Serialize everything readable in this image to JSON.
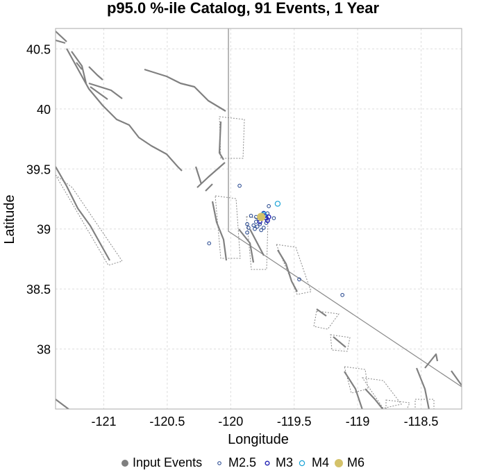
{
  "chart_data": {
    "type": "scatter",
    "title": "p95.0 %-ile Catalog, 91 Events, 1 Year",
    "xlabel": "Longitude",
    "ylabel": "Latitude",
    "xlim": [
      -121.38,
      -118.18
    ],
    "ylim": [
      37.5,
      40.67
    ],
    "x_ticks": [
      -121,
      -120.5,
      -120,
      -119.5,
      -119,
      -118.5
    ],
    "x_tick_labels": [
      "-121",
      "-120.5",
      "-120",
      "-119.5",
      "-119",
      "-118.5"
    ],
    "y_ticks": [
      38,
      38.5,
      39,
      39.5,
      40,
      40.5
    ],
    "y_tick_labels": [
      "38",
      "38.5",
      "39",
      "39.5",
      "40",
      "40.5"
    ],
    "grid": true,
    "legend": {
      "placement": "bottom",
      "entries": [
        {
          "name": "Input Events",
          "color": "#7f7f7f"
        },
        {
          "name": "M2.5",
          "color": "#1c3f8a"
        },
        {
          "name": "M3",
          "color": "#2a2ab5"
        },
        {
          "name": "M4",
          "color": "#1aa3d6"
        },
        {
          "name": "M6",
          "color": "#d4c26a"
        }
      ]
    },
    "series": [
      {
        "name": "M2.5",
        "points": [
          [
            -119.93,
            39.36
          ],
          [
            -119.87,
            38.97
          ],
          [
            -119.87,
            39.04
          ],
          [
            -119.86,
            39.01
          ],
          [
            -119.82,
            39.03
          ],
          [
            -119.81,
            39.0
          ],
          [
            -119.8,
            39.06
          ],
          [
            -119.79,
            39.02
          ],
          [
            -119.77,
            39.04
          ],
          [
            -119.76,
            38.99
          ],
          [
            -119.74,
            39.01
          ],
          [
            -119.72,
            39.05
          ],
          [
            -119.71,
            39.13
          ],
          [
            -119.7,
            39.19
          ],
          [
            -119.84,
            39.11
          ],
          [
            -119.66,
            39.09
          ],
          [
            -120.17,
            38.88
          ],
          [
            -119.46,
            38.58
          ],
          [
            -119.12,
            38.45
          ],
          [
            -119.78,
            39.08
          ],
          [
            -119.75,
            39.12
          ],
          [
            -119.8,
            39.1
          ]
        ]
      },
      {
        "name": "M3",
        "points": [
          [
            -119.76,
            39.1
          ],
          [
            -119.73,
            39.11
          ],
          [
            -119.72,
            39.09
          ],
          [
            -119.74,
            39.13
          ],
          [
            -119.7,
            39.1
          ],
          [
            -119.77,
            39.06
          ],
          [
            -119.71,
            39.07
          ]
        ]
      },
      {
        "name": "M4",
        "points": [
          [
            -119.63,
            39.21
          ],
          [
            -119.74,
            39.12
          ]
        ]
      },
      {
        "name": "M6",
        "points": [
          [
            -119.76,
            39.1
          ]
        ]
      }
    ]
  }
}
